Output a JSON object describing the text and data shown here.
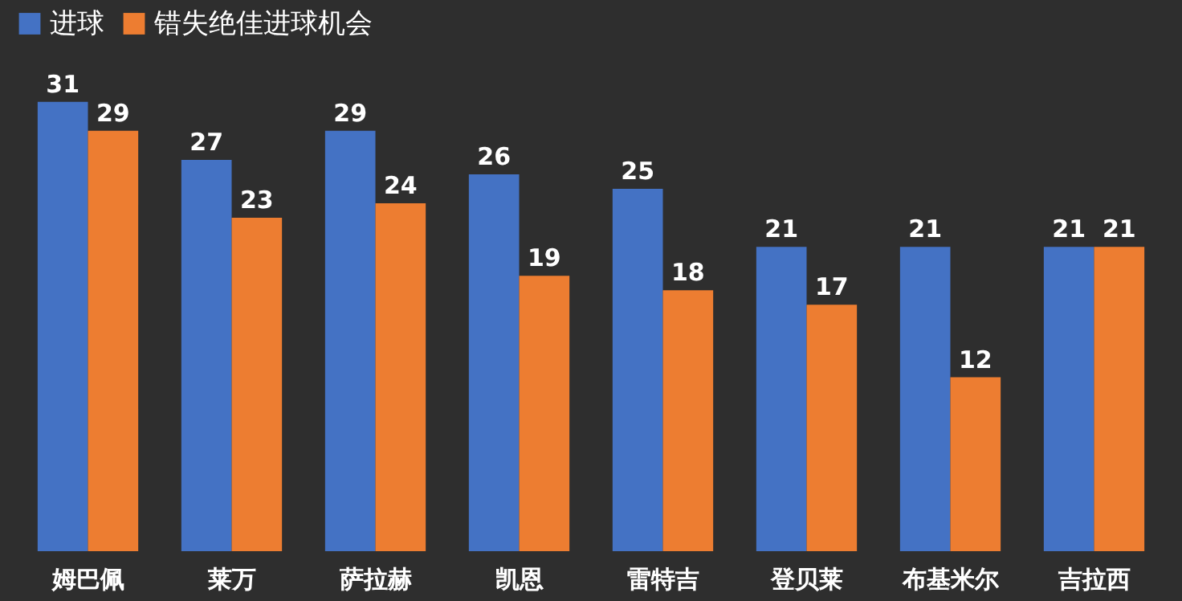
{
  "chart_data": {
    "type": "bar",
    "categories": [
      "姆巴佩",
      "莱万",
      "萨拉赫",
      "凯恩",
      "雷特吉",
      "登贝莱",
      "布基米尔",
      "吉拉西"
    ],
    "series": [
      {
        "name": "进球",
        "color": "#4472c4",
        "values": [
          31,
          27,
          29,
          26,
          25,
          21,
          21,
          21
        ]
      },
      {
        "name": "错失绝佳进球机会",
        "color": "#ed7d31",
        "values": [
          29,
          23,
          24,
          19,
          18,
          17,
          12,
          21
        ]
      }
    ],
    "data_labels": true,
    "legend": "top"
  }
}
